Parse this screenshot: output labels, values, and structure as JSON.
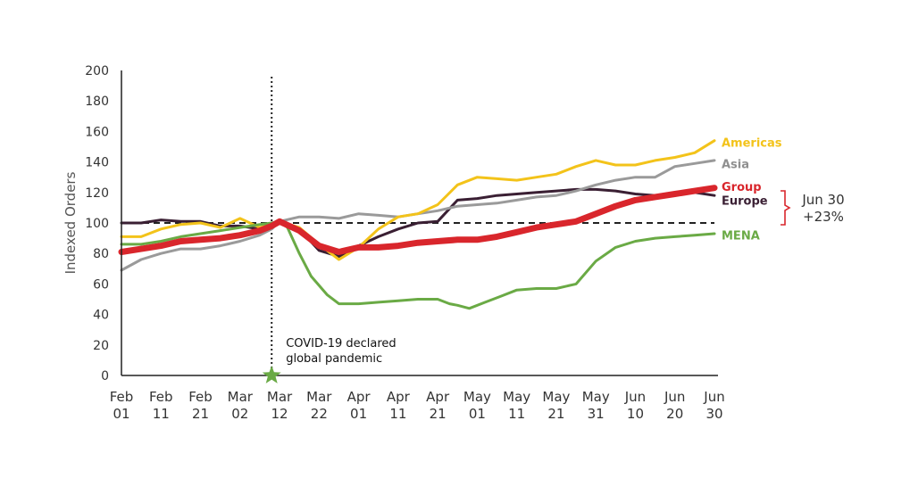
{
  "chart_data": {
    "type": "line",
    "ylabel": "Indexed Orders",
    "ylim": [
      0,
      200
    ],
    "yticks": [
      0,
      20,
      40,
      60,
      80,
      100,
      120,
      140,
      160,
      180,
      200
    ],
    "x_ticks": [
      {
        "day": 0,
        "line1": "Feb",
        "line2": "01"
      },
      {
        "day": 10,
        "line1": "Feb",
        "line2": "11"
      },
      {
        "day": 20,
        "line1": "Feb",
        "line2": "21"
      },
      {
        "day": 30,
        "line1": "Mar",
        "line2": "02"
      },
      {
        "day": 40,
        "line1": "Mar",
        "line2": "12"
      },
      {
        "day": 50,
        "line1": "Mar",
        "line2": "22"
      },
      {
        "day": 60,
        "line1": "Apr",
        "line2": "01"
      },
      {
        "day": 70,
        "line1": "Apr",
        "line2": "11"
      },
      {
        "day": 80,
        "line1": "Apr",
        "line2": "21"
      },
      {
        "day": 90,
        "line1": "May",
        "line2": "01"
      },
      {
        "day": 100,
        "line1": "May",
        "line2": "11"
      },
      {
        "day": 110,
        "line1": "May",
        "line2": "21"
      },
      {
        "day": 120,
        "line1": "May",
        "line2": "31"
      },
      {
        "day": 130,
        "line1": "Jun",
        "line2": "10"
      },
      {
        "day": 140,
        "line1": "Jun",
        "line2": "20"
      },
      {
        "day": 150,
        "line1": "Jun",
        "line2": "30"
      }
    ],
    "x_max": 150,
    "baseline": 100,
    "pandemic_day": 38,
    "annotation": {
      "line1": "COVID-19 declared",
      "line2": "global pandemic"
    },
    "callout": {
      "line1": "Jun 30",
      "line2": "+23%"
    },
    "series": [
      {
        "name": "Europe",
        "color": "#3a1f33",
        "width": 3,
        "points": [
          [
            0,
            100
          ],
          [
            5,
            100
          ],
          [
            10,
            102
          ],
          [
            15,
            101
          ],
          [
            20,
            101
          ],
          [
            25,
            98
          ],
          [
            30,
            98
          ],
          [
            35,
            96
          ],
          [
            38,
            98
          ],
          [
            40,
            101
          ],
          [
            45,
            96
          ],
          [
            50,
            82
          ],
          [
            55,
            78
          ],
          [
            60,
            85
          ],
          [
            65,
            91
          ],
          [
            70,
            96
          ],
          [
            75,
            100
          ],
          [
            80,
            101
          ],
          [
            85,
            115
          ],
          [
            90,
            116
          ],
          [
            95,
            118
          ],
          [
            100,
            119
          ],
          [
            105,
            120
          ],
          [
            110,
            121
          ],
          [
            115,
            122
          ],
          [
            120,
            122
          ],
          [
            125,
            121
          ],
          [
            130,
            119
          ],
          [
            135,
            118
          ],
          [
            140,
            120
          ],
          [
            145,
            120
          ],
          [
            150,
            118
          ]
        ]
      },
      {
        "name": "Asia",
        "color": "#9a9a9a",
        "width": 3,
        "points": [
          [
            0,
            69
          ],
          [
            5,
            76
          ],
          [
            10,
            80
          ],
          [
            15,
            83
          ],
          [
            20,
            83
          ],
          [
            25,
            85
          ],
          [
            30,
            88
          ],
          [
            35,
            92
          ],
          [
            38,
            96
          ],
          [
            40,
            101
          ],
          [
            45,
            104
          ],
          [
            50,
            104
          ],
          [
            55,
            103
          ],
          [
            60,
            106
          ],
          [
            65,
            105
          ],
          [
            70,
            104
          ],
          [
            75,
            106
          ],
          [
            80,
            108
          ],
          [
            85,
            111
          ],
          [
            90,
            112
          ],
          [
            95,
            113
          ],
          [
            100,
            115
          ],
          [
            105,
            117
          ],
          [
            110,
            118
          ],
          [
            115,
            121
          ],
          [
            120,
            125
          ],
          [
            125,
            128
          ],
          [
            130,
            130
          ],
          [
            135,
            130
          ],
          [
            140,
            137
          ],
          [
            145,
            139
          ],
          [
            150,
            141
          ]
        ]
      },
      {
        "name": "Americas",
        "color": "#f3c31a",
        "width": 3,
        "points": [
          [
            0,
            91
          ],
          [
            5,
            91
          ],
          [
            10,
            96
          ],
          [
            15,
            99
          ],
          [
            20,
            100
          ],
          [
            25,
            97
          ],
          [
            30,
            103
          ],
          [
            35,
            97
          ],
          [
            38,
            99
          ],
          [
            40,
            101
          ],
          [
            45,
            97
          ],
          [
            50,
            86
          ],
          [
            55,
            76
          ],
          [
            60,
            84
          ],
          [
            65,
            96
          ],
          [
            70,
            104
          ],
          [
            75,
            106
          ],
          [
            80,
            112
          ],
          [
            85,
            125
          ],
          [
            90,
            130
          ],
          [
            95,
            129
          ],
          [
            100,
            128
          ],
          [
            105,
            130
          ],
          [
            110,
            132
          ],
          [
            115,
            137
          ],
          [
            120,
            141
          ],
          [
            125,
            138
          ],
          [
            130,
            138
          ],
          [
            135,
            141
          ],
          [
            140,
            143
          ],
          [
            145,
            146
          ],
          [
            150,
            154
          ]
        ]
      },
      {
        "name": "MENA",
        "color": "#6aaa45",
        "width": 3,
        "points": [
          [
            0,
            86
          ],
          [
            5,
            86
          ],
          [
            10,
            88
          ],
          [
            15,
            91
          ],
          [
            20,
            93
          ],
          [
            25,
            95
          ],
          [
            30,
            97
          ],
          [
            35,
            99
          ],
          [
            38,
            100
          ],
          [
            40,
            101
          ],
          [
            42,
            97
          ],
          [
            45,
            80
          ],
          [
            48,
            65
          ],
          [
            52,
            53
          ],
          [
            55,
            47
          ],
          [
            60,
            47
          ],
          [
            65,
            48
          ],
          [
            70,
            49
          ],
          [
            75,
            50
          ],
          [
            80,
            50
          ],
          [
            83,
            47
          ],
          [
            85,
            46
          ],
          [
            88,
            44
          ],
          [
            92,
            48
          ],
          [
            96,
            52
          ],
          [
            100,
            56
          ],
          [
            105,
            57
          ],
          [
            110,
            57
          ],
          [
            115,
            60
          ],
          [
            120,
            75
          ],
          [
            125,
            84
          ],
          [
            130,
            88
          ],
          [
            135,
            90
          ],
          [
            140,
            91
          ],
          [
            145,
            92
          ],
          [
            150,
            93
          ]
        ]
      },
      {
        "name": "Group",
        "color": "#d9262c",
        "width": 7,
        "points": [
          [
            0,
            81
          ],
          [
            5,
            83
          ],
          [
            10,
            85
          ],
          [
            15,
            88
          ],
          [
            20,
            89
          ],
          [
            25,
            90
          ],
          [
            30,
            92
          ],
          [
            35,
            95
          ],
          [
            38,
            98
          ],
          [
            40,
            101
          ],
          [
            45,
            95
          ],
          [
            50,
            85
          ],
          [
            55,
            81
          ],
          [
            60,
            84
          ],
          [
            65,
            84
          ],
          [
            70,
            85
          ],
          [
            75,
            87
          ],
          [
            80,
            88
          ],
          [
            85,
            89
          ],
          [
            90,
            89
          ],
          [
            95,
            91
          ],
          [
            100,
            94
          ],
          [
            105,
            97
          ],
          [
            110,
            99
          ],
          [
            115,
            101
          ],
          [
            120,
            106
          ],
          [
            125,
            111
          ],
          [
            130,
            115
          ],
          [
            135,
            117
          ],
          [
            140,
            119
          ],
          [
            145,
            121
          ],
          [
            150,
            123
          ]
        ]
      }
    ],
    "legend_labels": [
      {
        "name": "Americas",
        "color": "#f3c31a",
        "y": 153
      },
      {
        "name": "Asia",
        "color": "#8f8f8f",
        "y": 139
      },
      {
        "name": "Group",
        "color": "#d9262c",
        "y": 124
      },
      {
        "name": "Europe",
        "color": "#3a1f33",
        "y": 115
      },
      {
        "name": "MENA",
        "color": "#6aaa45",
        "y": 92
      }
    ]
  }
}
